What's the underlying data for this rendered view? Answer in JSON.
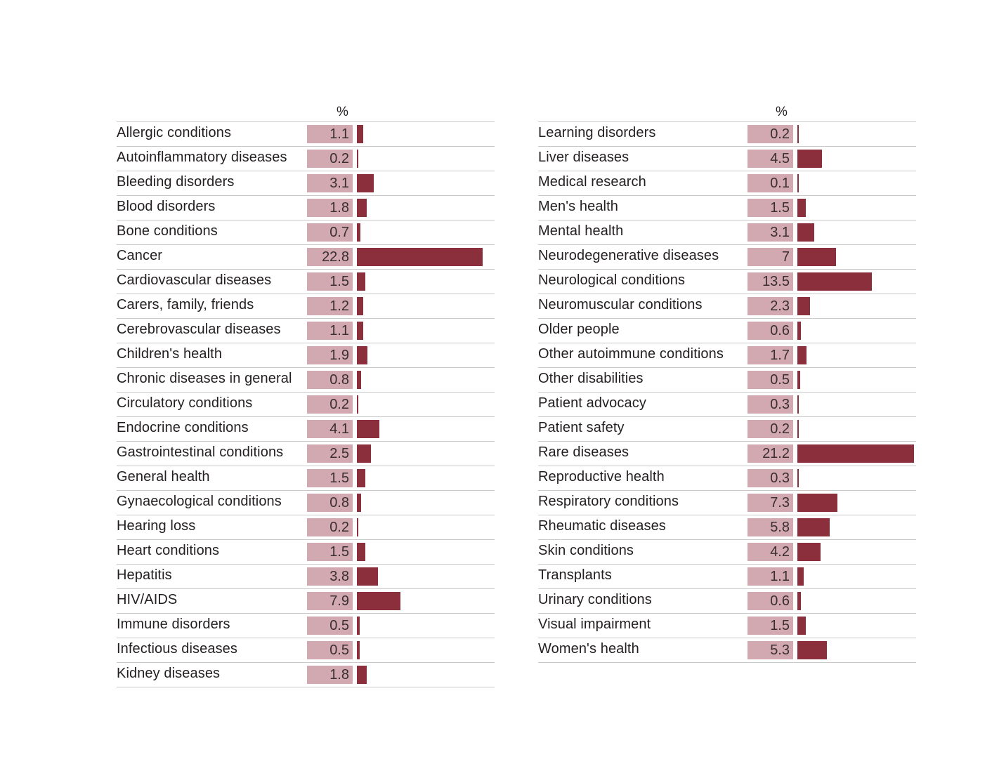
{
  "chart_data": [
    {
      "type": "bar",
      "orientation": "horizontal",
      "unit_header": "%",
      "categories": [
        "Allergic conditions",
        "Autoinflammatory diseases",
        "Bleeding disorders",
        "Blood disorders",
        "Bone conditions",
        "Cancer",
        "Cardiovascular diseases",
        "Carers, family, friends",
        "Cerebrovascular diseases",
        "Children's health",
        "Chronic diseases in general",
        "Circulatory conditions",
        "Endocrine conditions",
        "Gastrointestinal conditions",
        "General health",
        "Gynaecological conditions",
        "Hearing loss",
        "Heart conditions",
        "Hepatitis",
        "HIV/AIDS",
        "Immune disorders",
        "Infectious diseases",
        "Kidney diseases"
      ],
      "values": [
        1.1,
        0.2,
        3.1,
        1.8,
        0.7,
        22.8,
        1.5,
        1.2,
        1.1,
        1.9,
        0.8,
        0.2,
        4.1,
        2.5,
        1.5,
        0.8,
        0.2,
        1.5,
        3.8,
        7.9,
        0.5,
        0.5,
        1.8
      ],
      "labels": [
        "1.1",
        "0.2",
        "3.1",
        "1.8",
        "0.7",
        "22.8",
        "1.5",
        "1.2",
        "1.1",
        "1.9",
        "0.8",
        "0.2",
        "4.1",
        "2.5",
        "1.5",
        "0.8",
        "0.2",
        "1.5",
        "3.8",
        "7.9",
        "0.5",
        "0.5",
        "1.8"
      ]
    },
    {
      "type": "bar",
      "orientation": "horizontal",
      "unit_header": "%",
      "categories": [
        "Learning disorders",
        "Liver diseases",
        "Medical research",
        "Men's health",
        "Mental health",
        "Neurodegenerative diseases",
        "Neurological conditions",
        "Neuromuscular conditions",
        "Older people",
        "Other autoimmune conditions",
        "Other disabilities",
        "Patient advocacy",
        "Patient safety",
        "Rare diseases",
        "Reproductive health",
        "Respiratory conditions",
        "Rheumatic diseases",
        "Skin conditions",
        "Transplants",
        "Urinary conditions",
        "Visual impairment",
        "Women's health"
      ],
      "values": [
        0.2,
        4.5,
        0.1,
        1.5,
        3.1,
        7,
        13.5,
        2.3,
        0.6,
        1.7,
        0.5,
        0.3,
        0.2,
        21.2,
        0.3,
        7.3,
        5.8,
        4.2,
        1.1,
        0.6,
        1.5,
        5.3
      ],
      "labels": [
        "0.2",
        "4.5",
        "0.1",
        "1.5",
        "3.1",
        "7",
        "13.5",
        "2.3",
        "0.6",
        "1.7",
        "0.5",
        "0.3",
        "0.2",
        "21.2",
        "0.3",
        "7.3",
        "5.8",
        "4.2",
        "1.1",
        "0.6",
        "1.5",
        "5.3"
      ]
    }
  ],
  "colors": {
    "bar": "#8c2f3d",
    "value_box": "#d3a9b1",
    "rule": "#c9c9c9"
  }
}
